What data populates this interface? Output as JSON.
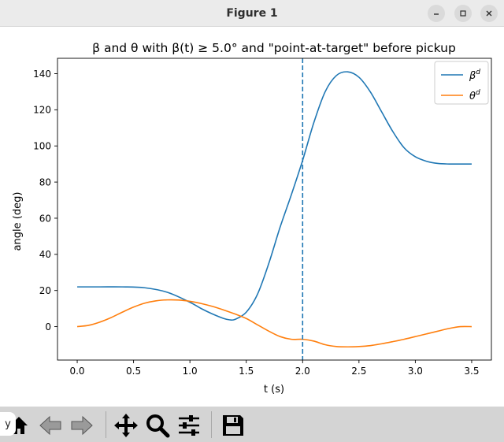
{
  "window": {
    "title": "Figure 1",
    "minimize_icon": "minimize-icon",
    "maximize_icon": "maximize-icon",
    "close_icon": "close-icon"
  },
  "toolbar": {
    "icons": [
      "home-icon",
      "back-arrow-icon",
      "forward-arrow-icon",
      "pan-icon",
      "zoom-icon",
      "configure-subplots-icon",
      "save-icon"
    ],
    "coord_text": "y"
  },
  "colors": {
    "beta": "#1f77b4",
    "theta": "#ff7f0e",
    "vline": "#1f77b4"
  },
  "chart_data": {
    "type": "line",
    "title": "β and θ with β(t) ≥ 5.0° and \"point-at-target\" before pickup",
    "xlabel": "t (s)",
    "ylabel": "angle (deg)",
    "xlim": [
      -0.175,
      3.675
    ],
    "ylim": [
      -18.5,
      148.5
    ],
    "xticks": [
      0.0,
      0.5,
      1.0,
      1.5,
      2.0,
      2.5,
      3.0,
      3.5
    ],
    "xtick_labels": [
      "0.0",
      "0.5",
      "1.0",
      "1.5",
      "2.0",
      "2.5",
      "3.0",
      "3.5"
    ],
    "yticks": [
      0,
      20,
      40,
      60,
      80,
      100,
      120,
      140
    ],
    "ytick_labels": [
      "0",
      "20",
      "40",
      "60",
      "80",
      "100",
      "120",
      "140"
    ],
    "grid": false,
    "legend": "top-right",
    "vline": {
      "x": 2.0,
      "style": "dashed"
    },
    "series": [
      {
        "name": "β",
        "sup": "d",
        "x": [
          0.0,
          0.2,
          0.4,
          0.6,
          0.8,
          1.0,
          1.1,
          1.2,
          1.3,
          1.35,
          1.4,
          1.5,
          1.6,
          1.7,
          1.8,
          1.9,
          2.0,
          2.1,
          2.2,
          2.3,
          2.4,
          2.5,
          2.6,
          2.7,
          2.8,
          2.9,
          3.0,
          3.1,
          3.2,
          3.3,
          3.4,
          3.5
        ],
        "values": [
          22.0,
          22.0,
          22.0,
          21.5,
          19.0,
          13.5,
          10.0,
          7.0,
          4.5,
          3.8,
          4.0,
          8.0,
          18.0,
          35.0,
          55.0,
          73.0,
          92.0,
          113.0,
          130.0,
          139.0,
          141.0,
          138.0,
          130.0,
          119.0,
          108.0,
          99.0,
          94.0,
          91.5,
          90.3,
          90.0,
          90.0,
          90.0
        ]
      },
      {
        "name": "θ",
        "sup": "d",
        "x": [
          0.0,
          0.1,
          0.2,
          0.3,
          0.4,
          0.5,
          0.6,
          0.7,
          0.8,
          0.9,
          1.0,
          1.1,
          1.2,
          1.3,
          1.4,
          1.5,
          1.6,
          1.7,
          1.8,
          1.9,
          2.0,
          2.1,
          2.2,
          2.3,
          2.4,
          2.5,
          2.6,
          2.7,
          2.8,
          2.9,
          3.0,
          3.1,
          3.2,
          3.3,
          3.4,
          3.5
        ],
        "values": [
          0.0,
          0.7,
          2.5,
          5.0,
          8.0,
          10.8,
          13.0,
          14.3,
          14.8,
          14.7,
          14.0,
          12.8,
          11.2,
          9.2,
          7.0,
          4.5,
          1.0,
          -2.5,
          -5.5,
          -7.0,
          -7.0,
          -8.0,
          -10.0,
          -11.0,
          -11.2,
          -11.0,
          -10.5,
          -9.5,
          -8.3,
          -7.0,
          -5.5,
          -4.0,
          -2.5,
          -1.0,
          0.0,
          0.0
        ]
      }
    ]
  }
}
